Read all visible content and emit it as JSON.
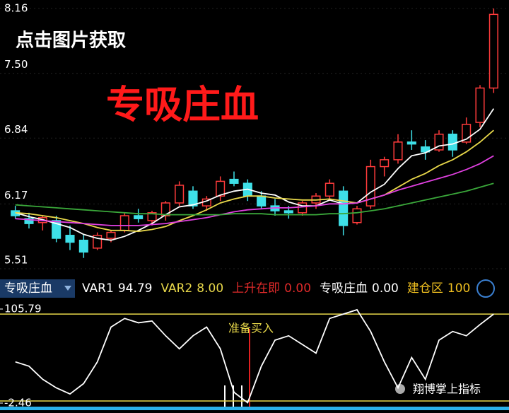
{
  "overlay": {
    "caption": "点击图片获取",
    "headline": "专吸庄血",
    "watermark": "翔博掌上指标"
  },
  "indicator_bar": {
    "name": "专吸庄血",
    "items": [
      {
        "name": "VAR1",
        "value": "94.79",
        "color": "#ffffff"
      },
      {
        "name": "VAR2",
        "value": "8.00",
        "color": "#e8d84a"
      },
      {
        "name": "上升在即",
        "value": "0.00",
        "color": "#e02a2a"
      },
      {
        "name": "专吸庄血",
        "value": "0.00",
        "color": "#ffffff"
      },
      {
        "name": "建仓区",
        "value": "100",
        "color": "#f0c020"
      }
    ]
  },
  "chart_data": [
    {
      "type": "candlestick",
      "ylim": [
        5.51,
        8.16
      ],
      "yticks": [
        8.16,
        {
          "value": 7.5,
          "label": "7.50"
        },
        6.84,
        6.17,
        5.51
      ],
      "up_color": "#ff3b3b",
      "down_color": "#3ee0e8",
      "open": [
        6.1,
        6.02,
        5.98,
        6.0,
        5.85,
        5.8,
        5.72,
        5.82,
        5.9,
        6.05,
        6.0,
        6.05,
        6.18,
        6.3,
        6.15,
        6.25,
        6.42,
        6.38,
        6.25,
        6.15,
        6.1,
        6.08,
        6.18,
        6.25,
        6.3,
        5.98,
        6.15,
        6.55,
        6.62,
        6.8,
        6.75,
        6.72,
        6.88,
        6.8,
        7.0,
        7.35
      ],
      "high": [
        6.15,
        6.08,
        6.05,
        6.05,
        5.95,
        5.86,
        5.88,
        5.9,
        6.08,
        6.12,
        6.1,
        6.2,
        6.4,
        6.35,
        6.25,
        6.45,
        6.5,
        6.42,
        6.3,
        6.22,
        6.15,
        6.2,
        6.28,
        6.42,
        6.35,
        6.15,
        6.62,
        6.65,
        6.88,
        6.92,
        6.82,
        6.92,
        6.92,
        7.05,
        7.38,
        8.16
      ],
      "low": [
        6.02,
        5.92,
        5.9,
        5.78,
        5.7,
        5.62,
        5.7,
        5.78,
        5.88,
        5.98,
        5.95,
        6.0,
        6.15,
        6.12,
        6.1,
        6.2,
        6.35,
        6.2,
        6.12,
        6.05,
        6.02,
        6.05,
        6.12,
        6.2,
        5.85,
        5.96,
        6.12,
        6.45,
        6.58,
        6.72,
        6.62,
        6.7,
        6.65,
        6.78,
        6.95,
        7.3
      ],
      "close": [
        6.05,
        5.97,
        6.03,
        5.82,
        5.78,
        5.68,
        5.85,
        5.88,
        6.05,
        6.02,
        6.08,
        6.18,
        6.36,
        6.15,
        6.22,
        6.4,
        6.38,
        6.25,
        6.15,
        6.1,
        6.08,
        6.18,
        6.25,
        6.38,
        5.95,
        6.12,
        6.55,
        6.62,
        6.8,
        6.78,
        6.7,
        6.88,
        6.72,
        6.98,
        7.35,
        8.1
      ],
      "lines": [
        {
          "color": "#ffffff",
          "values": [
            6.08,
            6.04,
            6.01,
            5.97,
            5.93,
            5.86,
            5.82,
            5.8,
            5.84,
            5.9,
            5.97,
            6.06,
            6.14,
            6.16,
            6.2,
            6.26,
            6.3,
            6.32,
            6.28,
            6.26,
            6.19,
            6.15,
            6.15,
            6.21,
            6.17,
            6.18,
            6.29,
            6.37,
            6.53,
            6.66,
            6.69,
            6.76,
            6.78,
            6.83,
            6.93,
            7.14
          ]
        },
        {
          "color": "#e8d84a",
          "values": [
            6.08,
            6.07,
            6.05,
            6.03,
            6.0,
            5.97,
            5.93,
            5.9,
            5.9,
            5.89,
            5.91,
            5.94,
            6.0,
            6.05,
            6.11,
            6.18,
            6.22,
            6.25,
            6.25,
            6.23,
            6.22,
            6.21,
            6.21,
            6.22,
            6.2,
            6.18,
            6.22,
            6.26,
            6.34,
            6.42,
            6.48,
            6.56,
            6.62,
            6.7,
            6.8,
            6.92
          ]
        },
        {
          "color": "#e040e0",
          "values": [
            6.02,
            6.01,
            6.0,
            5.99,
            5.98,
            5.97,
            5.96,
            5.95,
            5.95,
            5.95,
            5.96,
            5.97,
            5.99,
            6.01,
            6.03,
            6.06,
            6.09,
            6.11,
            6.12,
            6.13,
            6.13,
            6.14,
            6.15,
            6.17,
            6.17,
            6.18,
            6.22,
            6.26,
            6.31,
            6.35,
            6.39,
            6.43,
            6.47,
            6.52,
            6.58,
            6.66
          ]
        },
        {
          "color": "#3aa83a",
          "values": [
            6.16,
            6.15,
            6.14,
            6.13,
            6.12,
            6.11,
            6.1,
            6.09,
            6.08,
            6.07,
            6.07,
            6.06,
            6.06,
            6.06,
            6.06,
            6.06,
            6.07,
            6.07,
            6.07,
            6.06,
            6.06,
            6.06,
            6.06,
            6.07,
            6.07,
            6.08,
            6.1,
            6.12,
            6.15,
            6.18,
            6.21,
            6.24,
            6.27,
            6.3,
            6.34,
            6.38
          ]
        }
      ]
    },
    {
      "type": "line",
      "ylim": [
        -2.46,
        105.79
      ],
      "yticks": [
        105.79,
        -2.46
      ],
      "reference_lines": [
        100,
        0
      ],
      "annotation": "准备买入",
      "color": "#ffffff",
      "values": [
        45,
        40,
        25,
        15,
        8,
        20,
        45,
        85,
        95,
        90,
        92,
        75,
        60,
        75,
        85,
        60,
        10,
        -2,
        40,
        70,
        75,
        65,
        55,
        95,
        100,
        105,
        80,
        45,
        15,
        50,
        25,
        70,
        80,
        75,
        88,
        100
      ]
    }
  ]
}
